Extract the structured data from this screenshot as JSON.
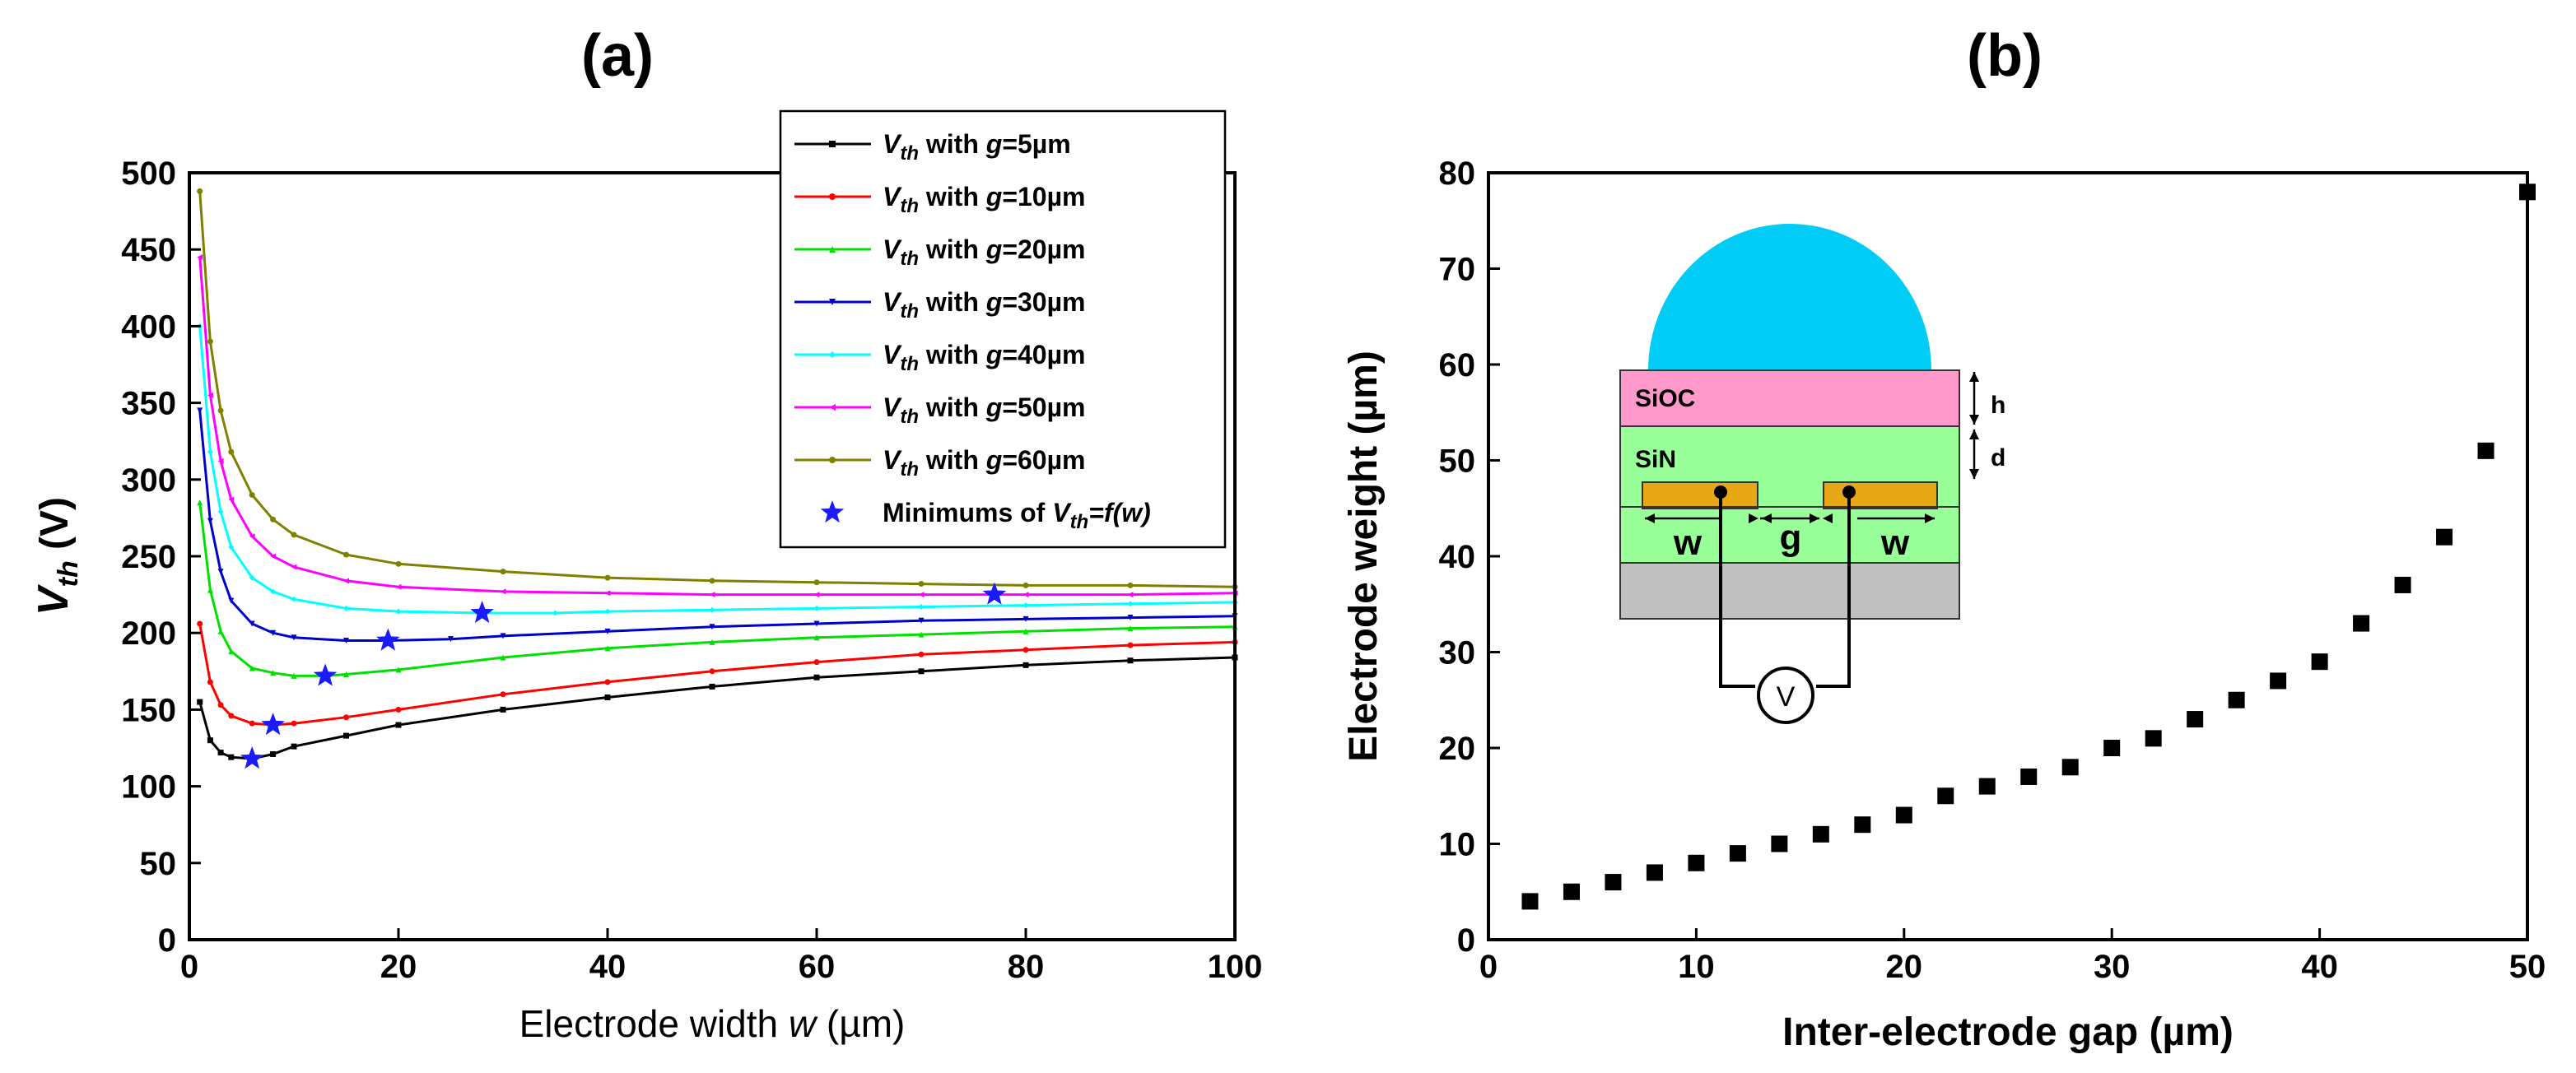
{
  "chart_data": [
    {
      "panel": "(a)",
      "type": "line",
      "title": "",
      "xlabel_prefix": "Electrode width ",
      "xlabel_var": "w",
      "xlabel_suffix": " (µm)",
      "ylabel_main": "V",
      "ylabel_sub": "th",
      "ylabel_suffix": " (V)",
      "xlim": [
        0,
        100
      ],
      "ylim": [
        0,
        500
      ],
      "xticks": [
        0,
        20,
        40,
        60,
        80,
        100
      ],
      "yticks": [
        0,
        50,
        100,
        150,
        200,
        250,
        300,
        350,
        400,
        450,
        500
      ],
      "grid": false,
      "legend_position": "top-right",
      "series": [
        {
          "name": "V_th with g=5µm",
          "gap": "5µm",
          "color": "#000000",
          "marker": "square",
          "x": [
            1,
            2,
            3,
            4,
            6,
            8,
            10,
            15,
            20,
            30,
            40,
            50,
            60,
            70,
            80,
            90,
            100
          ],
          "y": [
            155,
            130,
            122,
            119,
            118,
            121,
            126,
            133,
            140,
            150,
            158,
            165,
            171,
            175,
            179,
            182,
            184
          ]
        },
        {
          "name": "V_th with g=10µm",
          "gap": "10µm",
          "color": "#ff0000",
          "marker": "circle",
          "x": [
            1,
            2,
            3,
            4,
            6,
            8,
            10,
            15,
            20,
            30,
            40,
            50,
            60,
            70,
            80,
            90,
            100
          ],
          "y": [
            206,
            168,
            153,
            146,
            141,
            140,
            141,
            145,
            150,
            160,
            168,
            175,
            181,
            186,
            189,
            192,
            194
          ]
        },
        {
          "name": "V_th with g=20µm",
          "gap": "20µm",
          "color": "#00e000",
          "marker": "triangle-up",
          "x": [
            1,
            2,
            3,
            4,
            6,
            8,
            10,
            13,
            15,
            20,
            30,
            40,
            50,
            60,
            70,
            80,
            90,
            100
          ],
          "y": [
            285,
            228,
            201,
            188,
            177,
            174,
            172,
            172,
            173,
            176,
            184,
            190,
            194,
            197,
            199,
            201,
            203,
            204
          ]
        },
        {
          "name": "V_th with g=30µm",
          "gap": "30µm",
          "color": "#0000cc",
          "marker": "triangle-down",
          "x": [
            1,
            2,
            3,
            4,
            6,
            8,
            10,
            15,
            19,
            25,
            30,
            40,
            50,
            60,
            70,
            80,
            90,
            100
          ],
          "y": [
            345,
            273,
            240,
            221,
            206,
            200,
            197,
            195,
            195,
            196,
            198,
            201,
            204,
            206,
            208,
            209,
            210,
            211
          ]
        },
        {
          "name": "V_th with g=40µm",
          "gap": "40µm",
          "color": "#00ffff",
          "marker": "diamond",
          "x": [
            1,
            2,
            3,
            4,
            6,
            8,
            10,
            15,
            20,
            28,
            35,
            40,
            50,
            60,
            70,
            80,
            90,
            100
          ],
          "y": [
            400,
            318,
            279,
            256,
            236,
            227,
            222,
            216,
            214,
            213,
            213,
            214,
            215,
            216,
            217,
            218,
            219,
            220
          ]
        },
        {
          "name": "V_th with g=50µm",
          "gap": "50µm",
          "color": "#ff00ff",
          "marker": "triangle-left",
          "x": [
            1,
            2,
            3,
            4,
            6,
            8,
            10,
            15,
            20,
            30,
            40,
            50,
            60,
            70,
            77,
            80,
            90,
            100
          ],
          "y": [
            445,
            355,
            312,
            287,
            263,
            250,
            243,
            234,
            230,
            227,
            226,
            225,
            225,
            225,
            225,
            225,
            225,
            226
          ]
        },
        {
          "name": "V_th with g=60µm",
          "gap": "60µm",
          "color": "#808000",
          "marker": "circle",
          "x": [
            1,
            2,
            3,
            4,
            6,
            8,
            10,
            15,
            20,
            30,
            40,
            50,
            60,
            70,
            80,
            90,
            100
          ],
          "y": [
            488,
            390,
            345,
            318,
            290,
            274,
            264,
            251,
            245,
            240,
            236,
            234,
            233,
            232,
            231,
            231,
            230
          ]
        }
      ],
      "minimums": {
        "name": "Minimums of V_th=f(w)",
        "color": "#1a1aff",
        "marker": "star",
        "x": [
          6,
          8,
          13,
          19,
          28,
          77
        ],
        "y": [
          118,
          140,
          172,
          195,
          213,
          225
        ]
      },
      "legend_labels": {
        "v": "V",
        "th": "th",
        "with_g": " with ",
        "g": "g",
        "minimums_prefix": "Minimums of ",
        "minimums_suffix": "=f(w)"
      }
    },
    {
      "panel": "(b)",
      "type": "scatter",
      "title": "",
      "xlabel": "Inter-electrode gap (µm)",
      "ylabel": "Electrode weight (µm)",
      "xlim": [
        0,
        50
      ],
      "ylim": [
        0,
        80
      ],
      "xticks": [
        0,
        10,
        20,
        30,
        40,
        50
      ],
      "yticks": [
        0,
        10,
        20,
        30,
        40,
        50,
        60,
        70,
        80
      ],
      "grid": false,
      "marker": "square",
      "color": "#000000",
      "x": [
        2,
        4,
        6,
        8,
        10,
        12,
        14,
        16,
        18,
        20,
        22,
        24,
        26,
        28,
        30,
        32,
        34,
        36,
        38,
        40,
        42,
        44,
        46,
        48,
        50
      ],
      "y": [
        4,
        5,
        6,
        7,
        8,
        9,
        10,
        11,
        12,
        13,
        15,
        16,
        17,
        18,
        20,
        21,
        23,
        25,
        27,
        29,
        33,
        37,
        42,
        51,
        78
      ]
    }
  ],
  "inset": {
    "layer_top": "SiOC",
    "layer_mid": "SiN",
    "label_h": "h",
    "label_d": "d",
    "label_w_left": "w",
    "label_g": "g",
    "label_w_right": "w",
    "label_voltage": "V",
    "colors": {
      "droplet": "#00ccf5",
      "sioc": "#ff99cc",
      "sin": "#99ff99",
      "substrate": "#c0c0c0",
      "electrode": "#e6a817"
    }
  }
}
